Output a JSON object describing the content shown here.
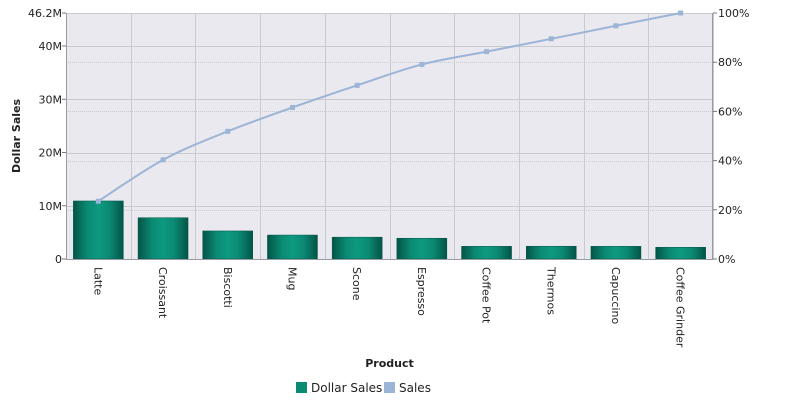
{
  "chart_data": {
    "type": "bar",
    "categories": [
      "Latte",
      "Croissant",
      "Biscotti",
      "Mug",
      "Scone",
      "Espresso",
      "Coffee Pot",
      "Thermos",
      "Capuccino",
      "Coffee Grinder"
    ],
    "series": [
      {
        "name": "Dollar Sales",
        "type": "bar",
        "axis": "left",
        "values": [
          10.9,
          7.75,
          5.27,
          4.5,
          4.1,
          3.9,
          2.38,
          2.4,
          2.38,
          2.2
        ],
        "color": "#0a8a72"
      },
      {
        "name": "Sales",
        "type": "line",
        "axis": "right",
        "values": [
          23.5,
          40.3,
          51.9,
          61.6,
          70.6,
          79.1,
          84.3,
          89.5,
          94.8,
          100
        ],
        "color": "#9cb4d6"
      }
    ],
    "xlabel": "Product",
    "ylabel": "Dollar Sales",
    "y_left": {
      "min": 0,
      "max": 46.2,
      "ticks": [
        0,
        10,
        20,
        30,
        40,
        46.2
      ],
      "tick_labels": [
        "0",
        "10M",
        "20M",
        "30M",
        "40M",
        "46.2M"
      ]
    },
    "y_right": {
      "min": 0,
      "max": 100,
      "ticks": [
        0,
        20,
        40,
        60,
        80,
        100
      ],
      "tick_labels": [
        "0%",
        "20%",
        "40%",
        "60%",
        "80%",
        "100%"
      ]
    },
    "grid": true,
    "legend": {
      "position": "bottom",
      "entries": [
        "Dollar Sales",
        "Sales"
      ]
    },
    "plot_background": "#e9e9ef",
    "grid_color": "#c9c9d0"
  }
}
